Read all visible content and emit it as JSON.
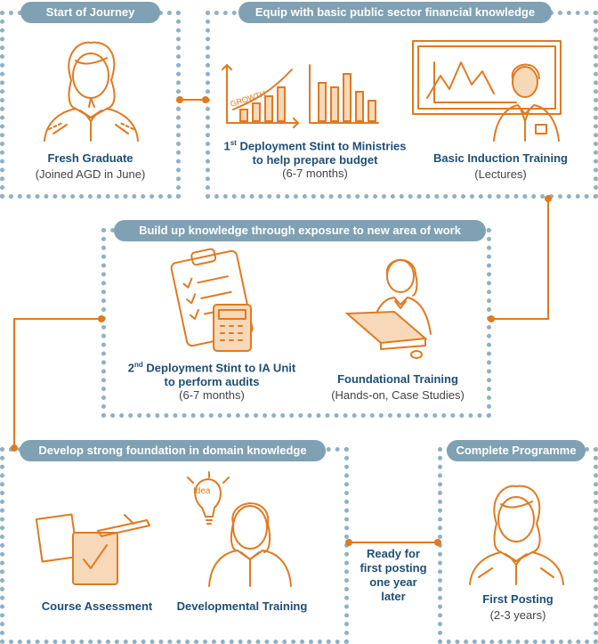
{
  "stages": {
    "start": {
      "pill": "Start of Journey",
      "title": "Fresh Graduate",
      "sub": "(Joined AGD in June)"
    },
    "equip": {
      "pill": "Equip with basic public sector financial knowledge",
      "deploy_title_1": "1",
      "deploy_sup": "st",
      "deploy_title_1b": " Deployment Stint to Ministries",
      "deploy_title_2": "to help prepare budget",
      "deploy_sub": "(6-7 months)",
      "growth_label": "GROWTH",
      "induction_title": "Basic Induction Training",
      "induction_sub": "(Lectures)"
    },
    "build": {
      "pill": "Build up knowledge through exposure to new area of work",
      "deploy_title_1": "2",
      "deploy_sup": "nd",
      "deploy_title_1b": " Deployment Stint to IA Unit",
      "deploy_title_2": "to perform audits",
      "deploy_sub": "(6-7 months)",
      "foundational_title": "Foundational Training",
      "foundational_sub": "(Hands-on, Case Studies)"
    },
    "develop": {
      "pill": "Develop strong foundation in domain knowledge",
      "assessment_title": "Course Assessment",
      "developmental_title": "Developmental Training",
      "idea_label": "Idea"
    },
    "ready": {
      "line1": "Ready for",
      "line2": "first posting",
      "line3": "one year",
      "line4": "later"
    },
    "complete": {
      "pill": "Complete Programme",
      "title": "First Posting",
      "sub": "(2-3 years)"
    }
  },
  "colors": {
    "accent": "#e07a22",
    "pill": "#7fa1b3",
    "border": "#8fb1c3",
    "title": "#1f4e74"
  }
}
